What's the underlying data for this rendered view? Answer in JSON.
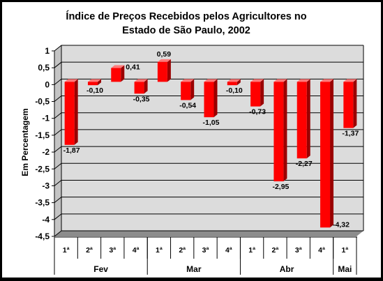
{
  "chart_data": {
    "type": "bar",
    "title_line1": "Índice de Preços Recebidos pelos Agricultores no",
    "title_line2": "Estado de São Paulo, 2002",
    "xlabel": "",
    "ylabel": "Em Percentagem",
    "ylim": [
      -4.5,
      1
    ],
    "yticks": [
      "1",
      "0,5",
      "0",
      "-0,5",
      "-1",
      "-1,5",
      "-2",
      "-2,5",
      "-3",
      "-3,5",
      "-4",
      "-4,5"
    ],
    "ytick_values": [
      1,
      0.5,
      0,
      -0.5,
      -1,
      -1.5,
      -2,
      -2.5,
      -3,
      -3.5,
      -4,
      -4.5
    ],
    "grid": true,
    "categories": [
      "1ª",
      "2ª",
      "3ª",
      "4ª",
      "1ª",
      "2ª",
      "3ª",
      "4ª",
      "1ª",
      "2ª",
      "3ª",
      "4ª",
      "1ª"
    ],
    "groups": [
      {
        "label": "Fev",
        "count": 4
      },
      {
        "label": "Mar",
        "count": 4
      },
      {
        "label": "Abr",
        "count": 4
      },
      {
        "label": "Mai",
        "count": 1
      }
    ],
    "values": [
      -1.87,
      -0.1,
      0.41,
      -0.35,
      0.59,
      -0.54,
      -1.05,
      -0.1,
      -0.73,
      -2.95,
      -2.27,
      -4.32,
      -1.37
    ],
    "value_labels": [
      "-1,87",
      "-0,10",
      "0,41",
      "-0,35",
      "0,59",
      "-0,54",
      "-1,05",
      "-0,10",
      "-0,73",
      "-2,95",
      "-2,27",
      "-4,32",
      "-1,37"
    ],
    "colors": {
      "bar_front": "#ff0000",
      "bar_side": "#9a0000",
      "bar_top": "#ff7a7a",
      "plot_wall": "#dcdcdc",
      "plot_floor": "#8c8c8c",
      "border": "#000000"
    }
  }
}
